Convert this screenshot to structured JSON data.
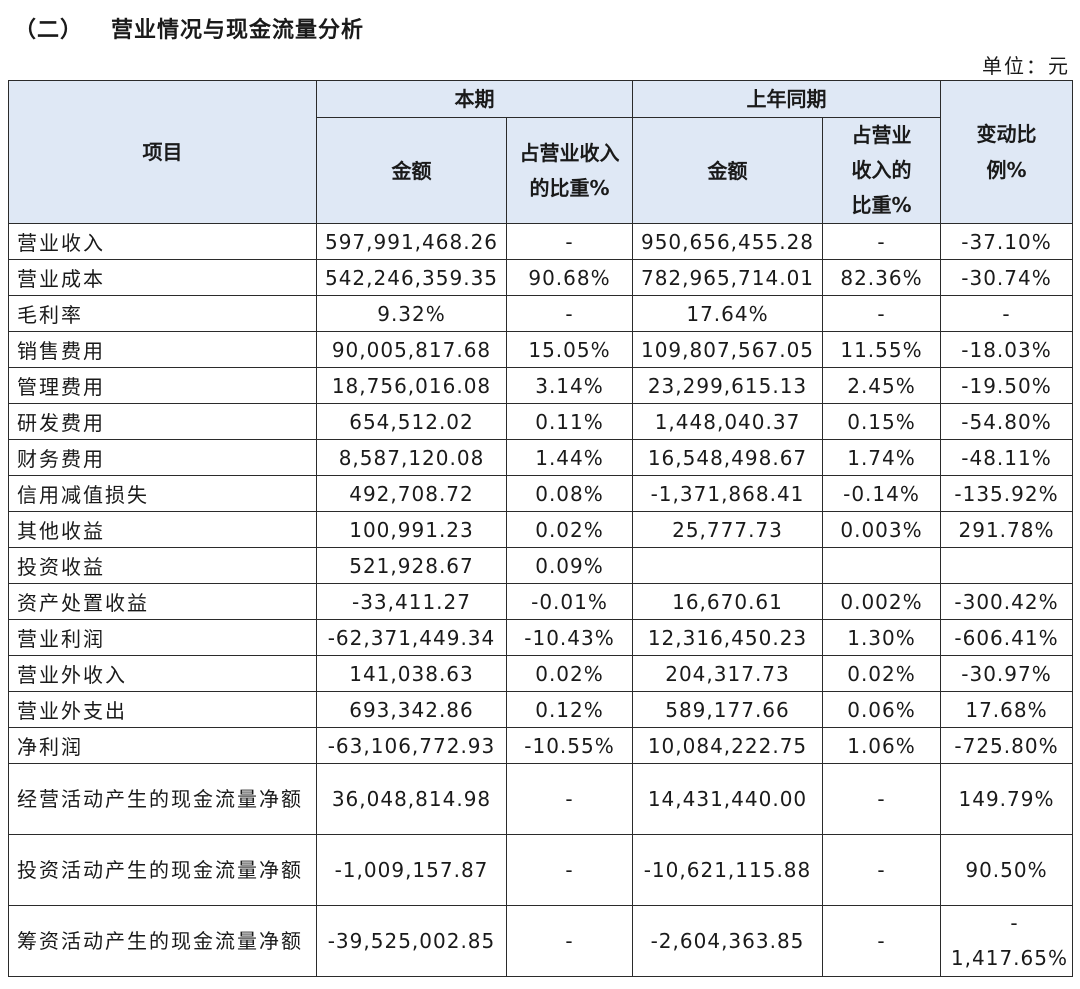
{
  "section": {
    "number": "（二）",
    "title": "营业情况与现金流量分析"
  },
  "unit_label": "单位：元",
  "header": {
    "item": "项目",
    "current_period": "本期",
    "prior_period": "上年同期",
    "amount": "金额",
    "revenue_share_current": "占营业收入的比重%",
    "revenue_share_prior": "占营业收入的比重%",
    "change_ratio": "变动比例%"
  },
  "rows": [
    {
      "item": "营业收入",
      "cur_amount": "597,991,468.26",
      "cur_pct": "-",
      "prev_amount": "950,656,455.28",
      "prev_pct": "-",
      "change": "-37.10%"
    },
    {
      "item": "营业成本",
      "cur_amount": "542,246,359.35",
      "cur_pct": "90.68%",
      "prev_amount": "782,965,714.01",
      "prev_pct": "82.36%",
      "change": "-30.74%"
    },
    {
      "item": "毛利率",
      "cur_amount": "9.32%",
      "cur_pct": "-",
      "prev_amount": "17.64%",
      "prev_pct": "-",
      "change": "-"
    },
    {
      "item": "销售费用",
      "cur_amount": "90,005,817.68",
      "cur_pct": "15.05%",
      "prev_amount": "109,807,567.05",
      "prev_pct": "11.55%",
      "change": "-18.03%"
    },
    {
      "item": "管理费用",
      "cur_amount": "18,756,016.08",
      "cur_pct": "3.14%",
      "prev_amount": "23,299,615.13",
      "prev_pct": "2.45%",
      "change": "-19.50%"
    },
    {
      "item": "研发费用",
      "cur_amount": "654,512.02",
      "cur_pct": "0.11%",
      "prev_amount": "1,448,040.37",
      "prev_pct": "0.15%",
      "change": "-54.80%"
    },
    {
      "item": "财务费用",
      "cur_amount": "8,587,120.08",
      "cur_pct": "1.44%",
      "prev_amount": "16,548,498.67",
      "prev_pct": "1.74%",
      "change": "-48.11%"
    },
    {
      "item": "信用减值损失",
      "cur_amount": "492,708.72",
      "cur_pct": "0.08%",
      "prev_amount": "-1,371,868.41",
      "prev_pct": "-0.14%",
      "change": "-135.92%"
    },
    {
      "item": "其他收益",
      "cur_amount": "100,991.23",
      "cur_pct": "0.02%",
      "prev_amount": "25,777.73",
      "prev_pct": "0.003%",
      "change": "291.78%"
    },
    {
      "item": "投资收益",
      "cur_amount": "521,928.67",
      "cur_pct": "0.09%",
      "prev_amount": "",
      "prev_pct": "",
      "change": ""
    },
    {
      "item": "资产处置收益",
      "cur_amount": "-33,411.27",
      "cur_pct": "-0.01%",
      "prev_amount": "16,670.61",
      "prev_pct": "0.002%",
      "change": "-300.42%"
    },
    {
      "item": "营业利润",
      "cur_amount": "-62,371,449.34",
      "cur_pct": "-10.43%",
      "prev_amount": "12,316,450.23",
      "prev_pct": "1.30%",
      "change": "-606.41%"
    },
    {
      "item": "营业外收入",
      "cur_amount": "141,038.63",
      "cur_pct": "0.02%",
      "prev_amount": "204,317.73",
      "prev_pct": "0.02%",
      "change": "-30.97%"
    },
    {
      "item": "营业外支出",
      "cur_amount": "693,342.86",
      "cur_pct": "0.12%",
      "prev_amount": "589,177.66",
      "prev_pct": "0.06%",
      "change": "17.68%"
    },
    {
      "item": "净利润",
      "cur_amount": "-63,106,772.93",
      "cur_pct": "-10.55%",
      "prev_amount": "10,084,222.75",
      "prev_pct": "1.06%",
      "change": "-725.80%"
    }
  ],
  "cash_rows": [
    {
      "item": "经营活动产生的现金流量净额",
      "cur_amount": "36,048,814.98",
      "cur_pct": "-",
      "prev_amount": "14,431,440.00",
      "prev_pct": "-",
      "change": "149.79%"
    },
    {
      "item": "投资活动产生的现金流量净额",
      "cur_amount": "-1,009,157.87",
      "cur_pct": "-",
      "prev_amount": "-10,621,115.88",
      "prev_pct": "-",
      "change": "90.50%"
    },
    {
      "item": "筹资活动产生的现金流量净额",
      "cur_amount": "-39,525,002.85",
      "cur_pct": "-",
      "prev_amount": "-2,604,363.85",
      "prev_pct": "-",
      "change_line1": "-",
      "change_line2": "1,417.65%"
    }
  ]
}
